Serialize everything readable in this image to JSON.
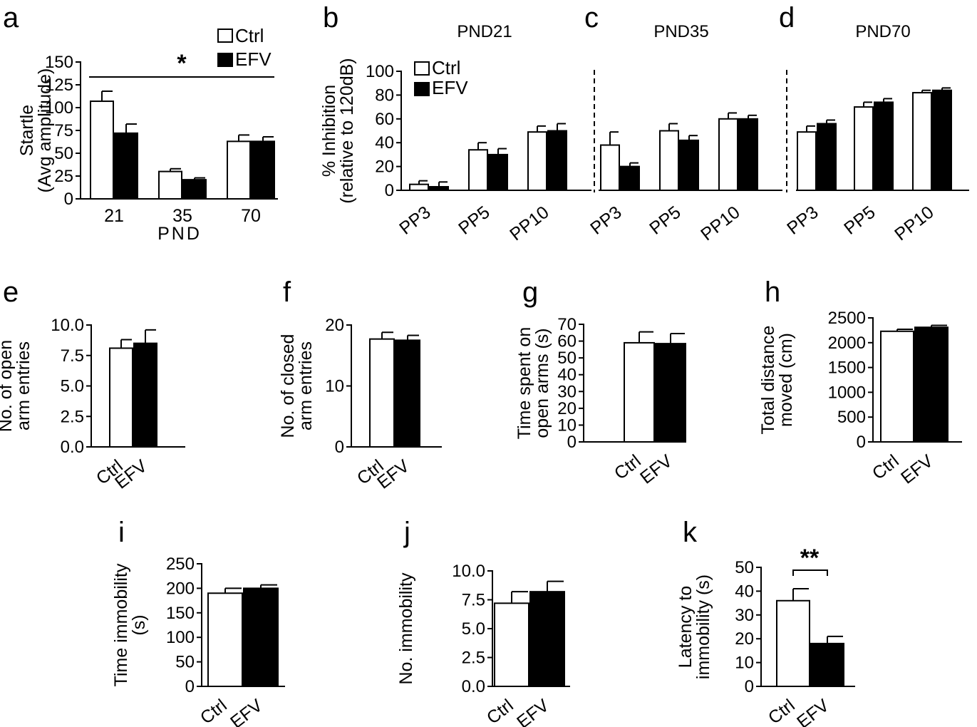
{
  "colors": {
    "ctrl": "#ffffff",
    "efv": "#000000",
    "axis": "#000000"
  },
  "legend_labels": [
    "Ctrl",
    "EFV"
  ],
  "chart_data": [
    {
      "id": "a",
      "type": "bar",
      "label": "a",
      "title": "",
      "xlabel": "PND",
      "ylabel": [
        "Startle",
        "(Avg amplitude)"
      ],
      "categories": [
        "21",
        "35",
        "70"
      ],
      "series": [
        {
          "name": "Ctrl",
          "values": [
            107,
            30,
            63
          ],
          "errors": [
            11,
            3,
            7
          ]
        },
        {
          "name": "EFV",
          "values": [
            72,
            21,
            63
          ],
          "errors": [
            10,
            2,
            5
          ]
        }
      ],
      "ylim": [
        0,
        150
      ],
      "yticks": [
        "0",
        "25",
        "50",
        "75",
        "100",
        "125",
        "150"
      ],
      "significance": "*"
    },
    {
      "id": "b",
      "type": "bar",
      "label": "b",
      "title": "PND21",
      "xlabel": "",
      "ylabel": [
        "% Inhibition",
        "(relative to 120dB)"
      ],
      "categories": [
        "PP3",
        "PP5",
        "PP10"
      ],
      "series": [
        {
          "name": "Ctrl",
          "values": [
            5,
            34,
            49
          ],
          "errors": [
            3,
            6,
            5
          ]
        },
        {
          "name": "EFV",
          "values": [
            3,
            30,
            50
          ],
          "errors": [
            4,
            5,
            6
          ]
        }
      ],
      "ylim": [
        0,
        100
      ],
      "yticks": [
        "0",
        "20",
        "40",
        "60",
        "80",
        "100"
      ]
    },
    {
      "id": "c",
      "type": "bar",
      "label": "c",
      "title": "PND35",
      "xlabel": "",
      "ylabel": [],
      "categories": [
        "PP3",
        "PP5",
        "PP10"
      ],
      "series": [
        {
          "name": "Ctrl",
          "values": [
            38,
            50,
            60
          ],
          "errors": [
            11,
            6,
            5
          ]
        },
        {
          "name": "EFV",
          "values": [
            20,
            42,
            60
          ],
          "errors": [
            3,
            4,
            3
          ]
        }
      ],
      "ylim": [
        0,
        100
      ],
      "yticks": []
    },
    {
      "id": "d",
      "type": "bar",
      "label": "d",
      "title": "PND70",
      "xlabel": "",
      "ylabel": [],
      "categories": [
        "PP3",
        "PP5",
        "PP10"
      ],
      "series": [
        {
          "name": "Ctrl",
          "values": [
            49,
            70,
            82
          ],
          "errors": [
            5,
            4,
            2
          ]
        },
        {
          "name": "EFV",
          "values": [
            56,
            74,
            84
          ],
          "errors": [
            3,
            3,
            2
          ]
        }
      ],
      "ylim": [
        0,
        100
      ],
      "yticks": []
    },
    {
      "id": "e",
      "type": "bar",
      "label": "e",
      "title": "",
      "xlabel": "",
      "ylabel": [
        "No. of open",
        "arm entries"
      ],
      "categories": [
        "Ctrl",
        "EFV"
      ],
      "values": [
        8.1,
        8.5
      ],
      "errors": [
        0.7,
        1.1
      ],
      "ylim": [
        0,
        10
      ],
      "yticks": [
        "0.0",
        "2.5",
        "5.0",
        "7.5",
        "10.0"
      ]
    },
    {
      "id": "f",
      "type": "bar",
      "label": "f",
      "title": "",
      "xlabel": "",
      "ylabel": [
        "No. of closed",
        "arm entries"
      ],
      "categories": [
        "Ctrl",
        "EFV"
      ],
      "values": [
        17.7,
        17.5
      ],
      "errors": [
        1.1,
        0.8
      ],
      "ylim": [
        0,
        20
      ],
      "yticks": [
        "0",
        "10",
        "20"
      ]
    },
    {
      "id": "g",
      "type": "bar",
      "label": "g",
      "title": "",
      "xlabel": "",
      "ylabel": [
        "Time spent on",
        "open arms (s)"
      ],
      "categories": [
        "Ctrl",
        "EFV"
      ],
      "values": [
        59,
        58.5
      ],
      "errors": [
        6.5,
        6
      ],
      "ylim": [
        0,
        70
      ],
      "yticks": [
        "0",
        "10",
        "20",
        "30",
        "40",
        "50",
        "60",
        "70"
      ]
    },
    {
      "id": "h",
      "type": "bar",
      "label": "h",
      "title": "",
      "xlabel": "",
      "ylabel": [
        "Total distance",
        "moved (cm)"
      ],
      "categories": [
        "Ctrl",
        "EFV"
      ],
      "values": [
        2230,
        2310
      ],
      "errors": [
        40,
        40
      ],
      "ylim": [
        0,
        2500
      ],
      "yticks": [
        "0",
        "500",
        "1000",
        "1500",
        "2000",
        "2500"
      ]
    },
    {
      "id": "i",
      "type": "bar",
      "label": "i",
      "title": "",
      "xlabel": "",
      "ylabel": [
        "Time immobility",
        "(s)"
      ],
      "categories": [
        "Ctrl",
        "EFV"
      ],
      "values": [
        190,
        200
      ],
      "errors": [
        10,
        7
      ],
      "ylim": [
        0,
        250
      ],
      "yticks": [
        "0",
        "50",
        "100",
        "150",
        "200",
        "250"
      ]
    },
    {
      "id": "j",
      "type": "bar",
      "label": "j",
      "title": "",
      "xlabel": "",
      "ylabel": [
        "No. immobility"
      ],
      "categories": [
        "Ctrl",
        "EFV"
      ],
      "values": [
        7.2,
        8.2
      ],
      "errors": [
        1.0,
        0.9
      ],
      "ylim": [
        0,
        10
      ],
      "yticks": [
        "0.0",
        "2.5",
        "5.0",
        "7.5",
        "10.0"
      ]
    },
    {
      "id": "k",
      "type": "bar",
      "label": "k",
      "title": "",
      "xlabel": "",
      "ylabel": [
        "Latency to",
        "immobility (s)"
      ],
      "categories": [
        "Ctrl",
        "EFV"
      ],
      "values": [
        36,
        18
      ],
      "errors": [
        5,
        3
      ],
      "ylim": [
        0,
        50
      ],
      "yticks": [
        "0",
        "10",
        "20",
        "30",
        "40",
        "50"
      ],
      "significance": "**"
    }
  ]
}
